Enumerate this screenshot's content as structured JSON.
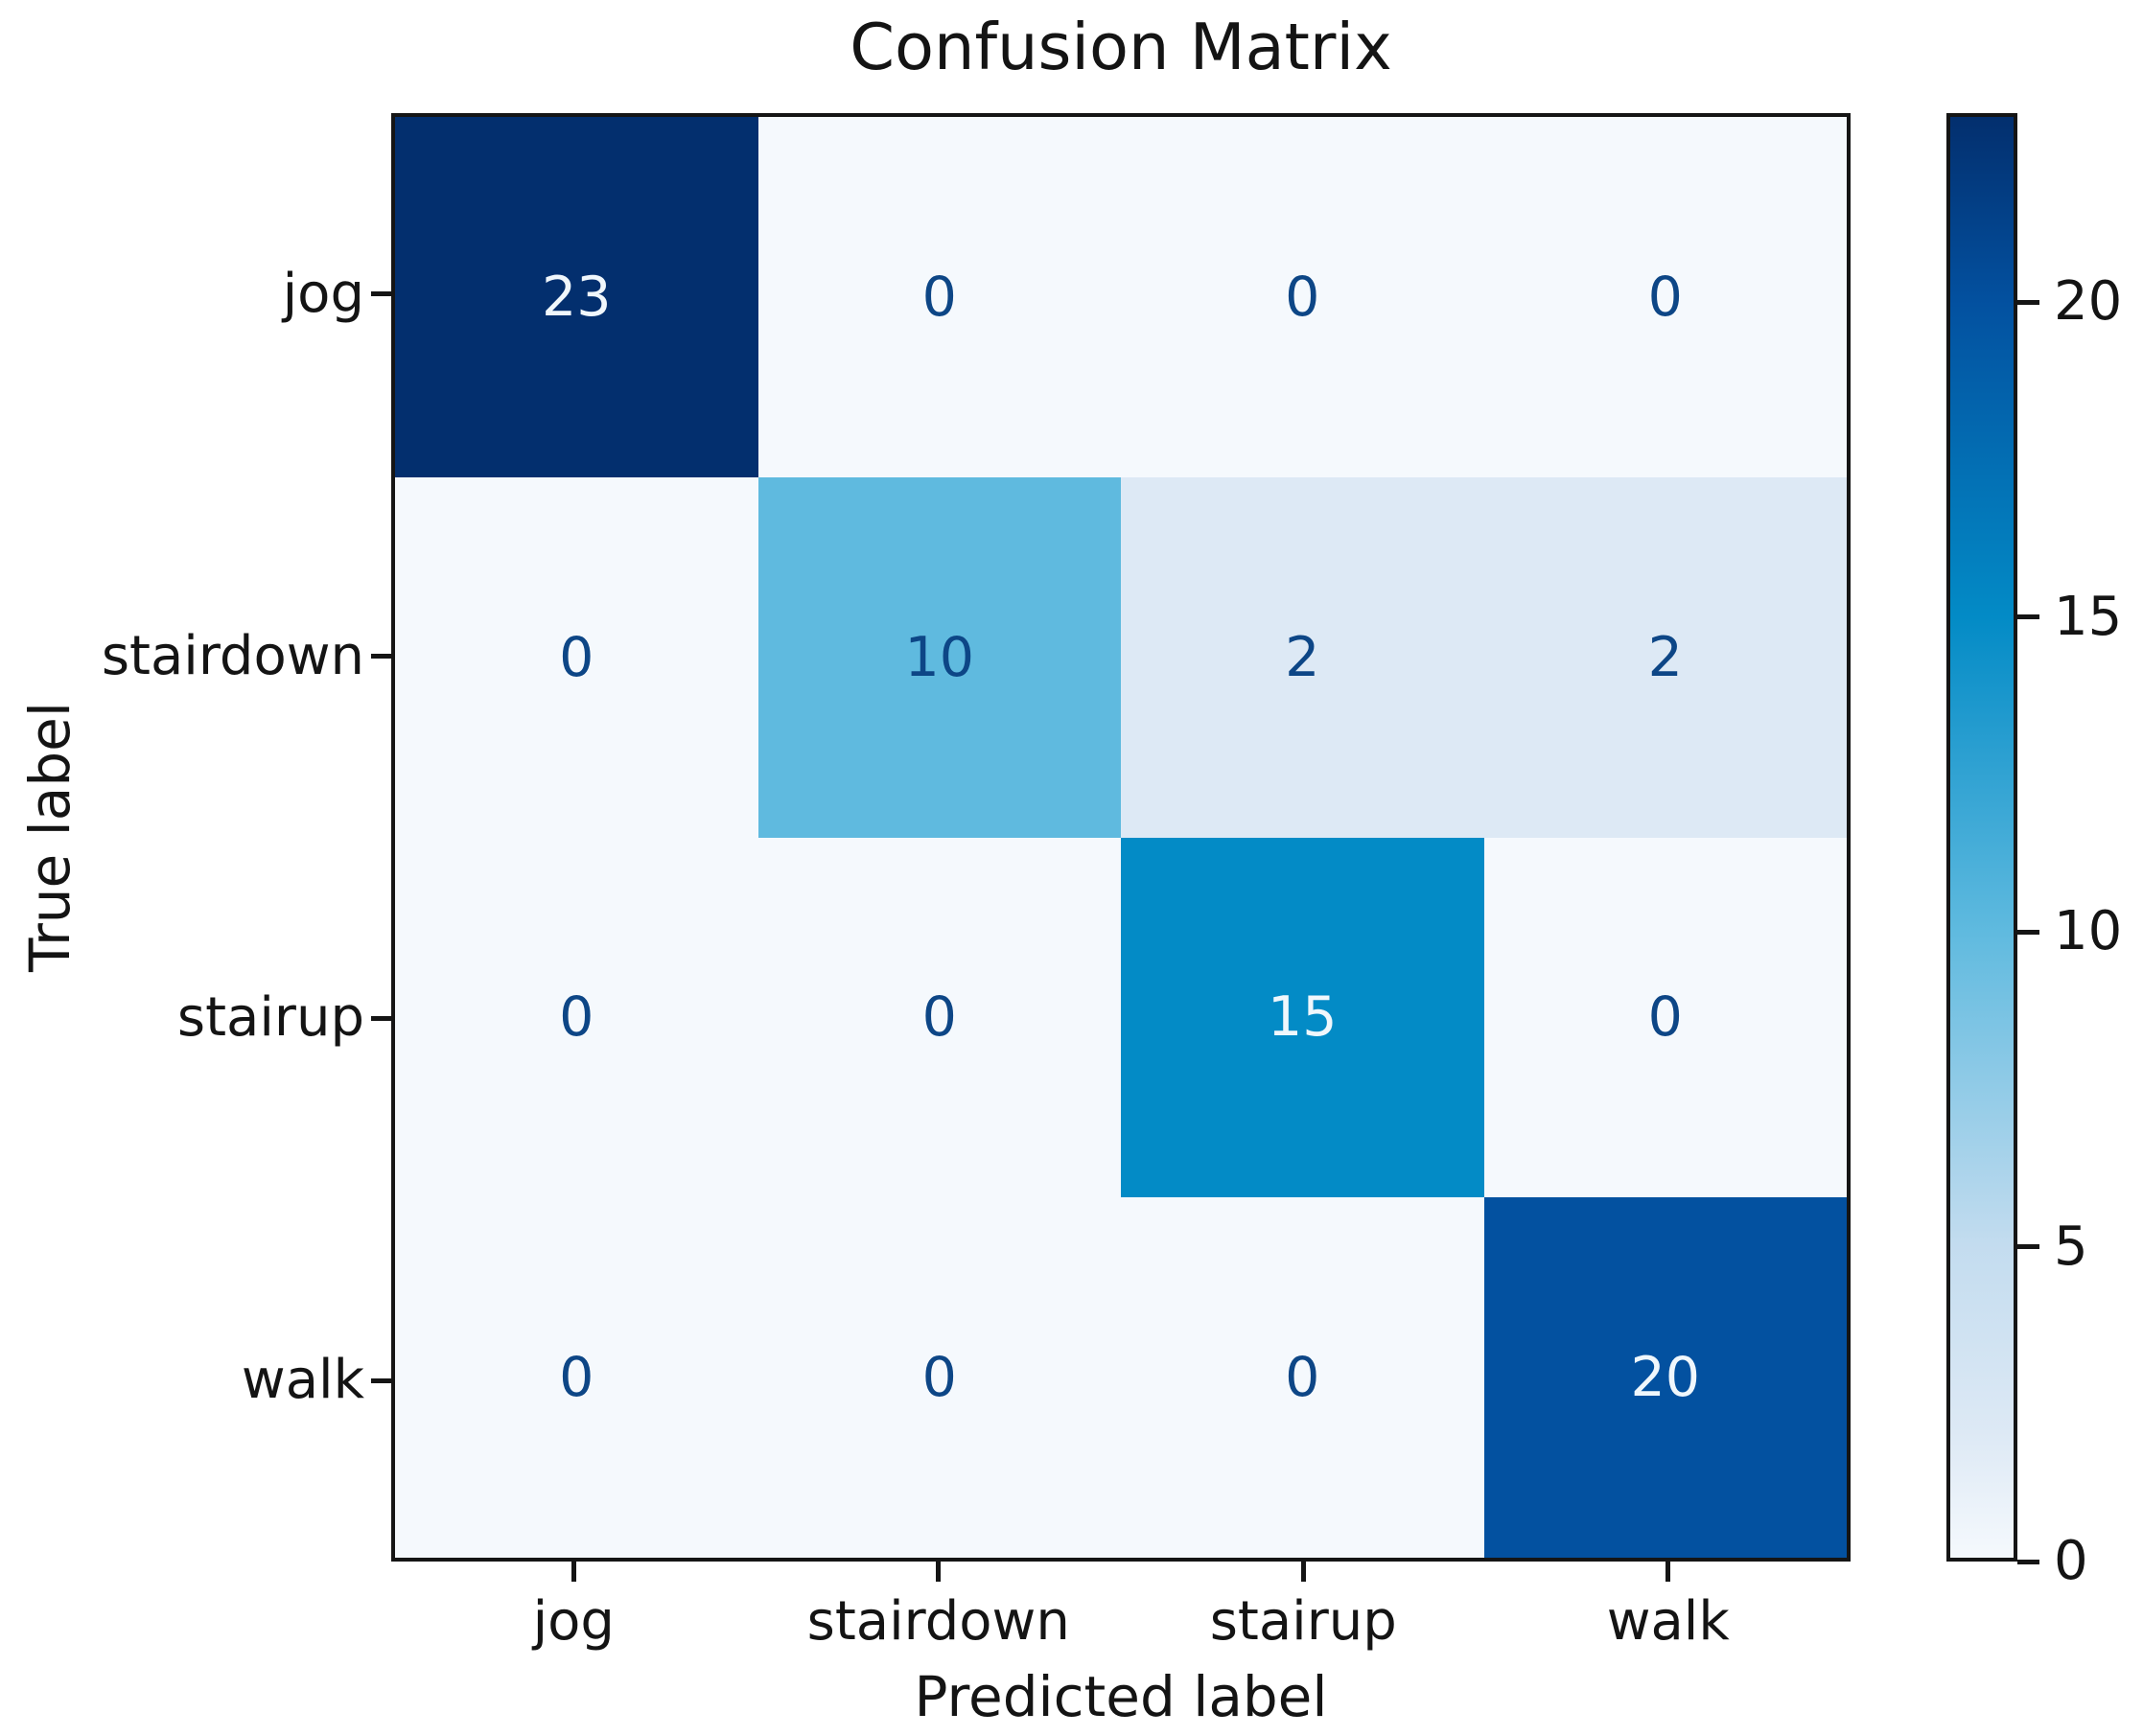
{
  "title": "Confusion Matrix",
  "chart_data": {
    "type": "heatmap",
    "title": "Confusion Matrix",
    "xlabel": "Predicted label",
    "ylabel": "True label",
    "x_categories": [
      "jog",
      "stairdown",
      "stairup",
      "walk"
    ],
    "y_categories": [
      "jog",
      "stairdown",
      "stairup",
      "walk"
    ],
    "matrix": [
      [
        23,
        0,
        0,
        0
      ],
      [
        0,
        10,
        2,
        2
      ],
      [
        0,
        0,
        15,
        0
      ],
      [
        0,
        0,
        0,
        20
      ]
    ],
    "vmin": 0,
    "vmax": 23,
    "colormap": "Blues",
    "colormap_stops": [
      {
        "value": 0,
        "color": "#f5f9fd"
      },
      {
        "value": 2,
        "color": "#dde9f5"
      },
      {
        "value": 5,
        "color": "#c3dcef"
      },
      {
        "value": 10,
        "color": "#5fbadf"
      },
      {
        "value": 15,
        "color": "#038bc6"
      },
      {
        "value": 20,
        "color": "#0351a0"
      },
      {
        "value": 23,
        "color": "#032f6e"
      }
    ],
    "colorbar_ticks": [
      0,
      5,
      10,
      15,
      20
    ],
    "colorbar_position": "right",
    "cell_text_dark": "#0d4686",
    "cell_text_light": "#f0f7fc",
    "text_threshold": 11.5,
    "grid": false
  }
}
